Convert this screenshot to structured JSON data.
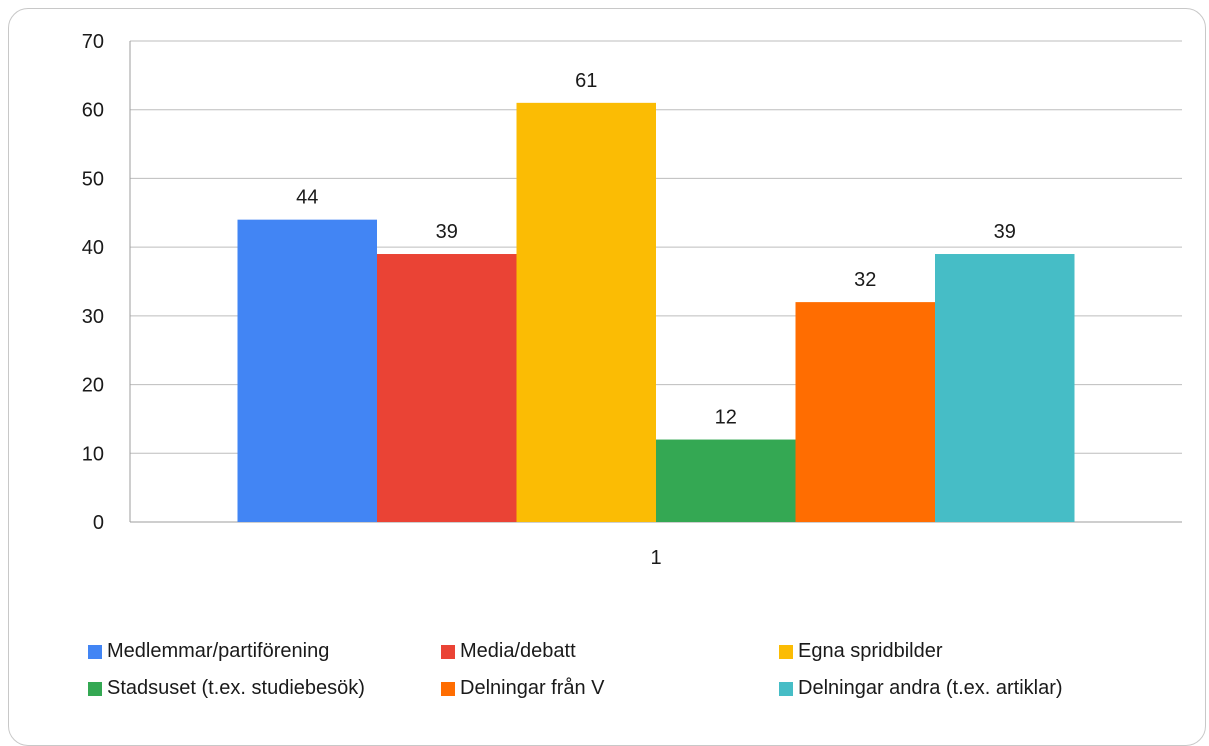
{
  "chart_data": {
    "type": "bar",
    "categories": [
      "1"
    ],
    "series": [
      {
        "name": "Medlemmar/partiförening",
        "values": [
          44
        ],
        "color": "#4285F4"
      },
      {
        "name": "Media/debatt",
        "values": [
          39
        ],
        "color": "#EA4335"
      },
      {
        "name": "Egna spridbilder",
        "values": [
          61
        ],
        "color": "#FBBC04"
      },
      {
        "name": "Stadsuset (t.ex. studiebesök)",
        "values": [
          12
        ],
        "color": "#34A853"
      },
      {
        "name": "Delningar från V",
        "values": [
          32
        ],
        "color": "#FF6D01"
      },
      {
        "name": "Delningar andra (t.ex. artiklar)",
        "values": [
          39
        ],
        "color": "#46BDC6"
      }
    ],
    "yticks": [
      0,
      10,
      20,
      30,
      40,
      50,
      60,
      70
    ],
    "ylim": [
      0,
      70
    ],
    "grid": true,
    "legend": "bottom",
    "data_labels": true
  }
}
